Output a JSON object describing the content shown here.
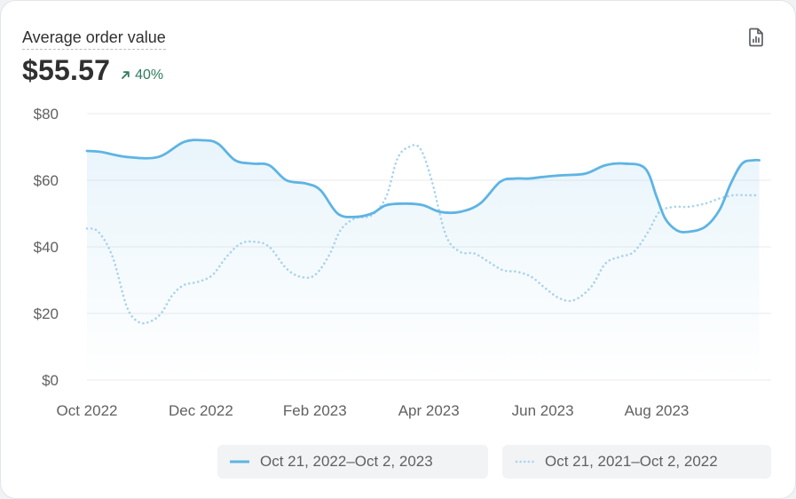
{
  "header": {
    "title": "Average order value",
    "value": "$55.57",
    "change": "40%"
  },
  "export_icon": "report-export-icon",
  "colors": {
    "primary": "#5eb4e3",
    "comparison": "#a9d3ec",
    "positive": "#2f7d5b",
    "grid": "#ebebeb",
    "axis_text": "#616161"
  },
  "chart_data": {
    "type": "line",
    "title": "Average order value",
    "ylim": [
      0,
      80
    ],
    "yticks": [
      0,
      20,
      40,
      60,
      80
    ],
    "ytick_labels": [
      "$0",
      "$20",
      "$40",
      "$60",
      "$80"
    ],
    "xlim": [
      0,
      11.8
    ],
    "x_tick_positions": [
      0,
      2,
      4,
      6,
      8,
      10
    ],
    "x_tick_labels": [
      "Oct 2022",
      "Dec 2022",
      "Feb 2023",
      "Apr 2023",
      "Jun 2023",
      "Aug 2023"
    ],
    "grid": true,
    "legend_placement": "bottom-right",
    "series": [
      {
        "name": "Oct 21, 2022–Oct 2, 2023",
        "style": "solid",
        "x": [
          0,
          0.25,
          0.7,
          1.25,
          1.7,
          2.05,
          2.3,
          2.6,
          2.9,
          3.2,
          3.5,
          3.85,
          4.1,
          4.4,
          4.7,
          5.0,
          5.25,
          5.6,
          5.9,
          6.2,
          6.55,
          6.9,
          7.25,
          7.5,
          7.75,
          8.0,
          8.35,
          8.75,
          9.1,
          9.45,
          9.8,
          10.0,
          10.15,
          10.35,
          10.55,
          10.85,
          11.1,
          11.3,
          11.5,
          11.7,
          11.8
        ],
        "values": [
          68.8,
          68.5,
          67,
          67,
          71.5,
          72,
          71,
          66,
          65,
          64.5,
          60,
          59,
          57,
          50,
          49,
          50,
          52.5,
          53,
          52.5,
          50.5,
          50.5,
          53,
          59.5,
          60.5,
          60.5,
          61,
          61.5,
          62,
          64.5,
          65,
          63.5,
          55,
          48.5,
          45,
          44.5,
          46,
          51,
          59,
          65,
          66,
          66
        ]
      },
      {
        "name": "Oct 21, 2021–Oct 2, 2022",
        "style": "dotted",
        "x": [
          0,
          0.2,
          0.45,
          0.7,
          0.9,
          1.1,
          1.3,
          1.5,
          1.7,
          1.95,
          2.2,
          2.45,
          2.7,
          2.95,
          3.2,
          3.5,
          3.75,
          4.0,
          4.25,
          4.45,
          4.7,
          5.0,
          5.25,
          5.45,
          5.65,
          5.85,
          6.05,
          6.3,
          6.55,
          6.8,
          7.05,
          7.3,
          7.55,
          7.8,
          8.05,
          8.3,
          8.55,
          8.85,
          9.1,
          9.35,
          9.6,
          9.85,
          10.05,
          10.3,
          10.55,
          10.85,
          11.1,
          11.35,
          11.6,
          11.8
        ],
        "values": [
          45.5,
          44.5,
          37,
          22,
          17.5,
          17.5,
          20,
          25.5,
          28.5,
          29.5,
          31.5,
          37,
          41,
          41.5,
          40,
          33.5,
          31,
          31.5,
          37.5,
          45,
          48.5,
          49.5,
          55,
          66.5,
          70,
          69.5,
          60,
          43.5,
          38.5,
          38,
          35.5,
          33,
          32.5,
          31,
          27.5,
          24.5,
          24,
          28,
          35,
          37,
          38.5,
          44.5,
          50.5,
          52,
          52,
          53,
          54.5,
          55.5,
          55.5,
          55.5
        ]
      }
    ]
  }
}
